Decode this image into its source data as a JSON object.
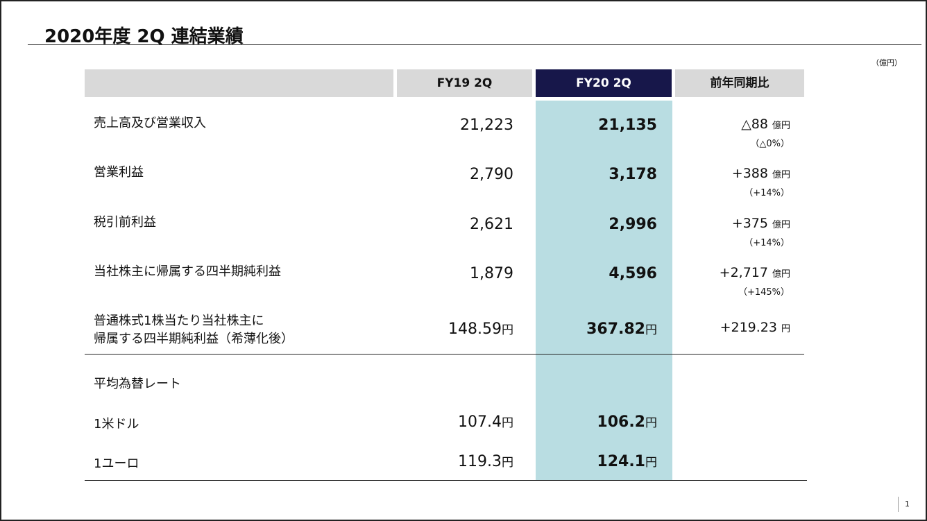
{
  "header": {
    "title": "2020年度 2Q 連結業績",
    "unit_note": "（億円）"
  },
  "table": {
    "columns": [
      "FY19 2Q",
      "FY20 2Q",
      "前年同期比"
    ],
    "rows": [
      {
        "label": [
          "売上高及び営業収入"
        ],
        "fy19": "21,223",
        "fy20": "21,135",
        "change": "△88",
        "change_unit": "億円",
        "change_pct": "（△0%）"
      },
      {
        "label": [
          "営業利益"
        ],
        "fy19": "2,790",
        "fy20": "3,178",
        "change": "+388",
        "change_unit": "億円",
        "change_pct": "（+14%）"
      },
      {
        "label": [
          "税引前利益"
        ],
        "fy19": "2,621",
        "fy20": "2,996",
        "change": "+375",
        "change_unit": "億円",
        "change_pct": "（+14%）"
      },
      {
        "label": [
          "当社株主に帰属する四半期純利益"
        ],
        "fy19": "1,879",
        "fy20": "4,596",
        "change": "+2,717",
        "change_unit": "億円",
        "change_pct": "（+145%）"
      },
      {
        "label": [
          "普通株式1株当たり当社株主に",
          "帰属する四半期純利益（希薄化後）"
        ],
        "fy19": "148.59",
        "fy19_unit": "円",
        "fy20": "367.82",
        "fy20_unit": "円",
        "change": "+219.23",
        "change_unit": "円"
      }
    ]
  },
  "fx": {
    "title": "平均為替レート",
    "rows": [
      {
        "label": "1米ドル",
        "fy19": "107.4",
        "fy19_unit": "円",
        "fy20": "106.2",
        "fy20_unit": "円"
      },
      {
        "label": "1ユーロ",
        "fy19": "119.3",
        "fy19_unit": "円",
        "fy20": "124.1",
        "fy20_unit": "円"
      }
    ]
  },
  "footer": {
    "page": "1"
  }
}
